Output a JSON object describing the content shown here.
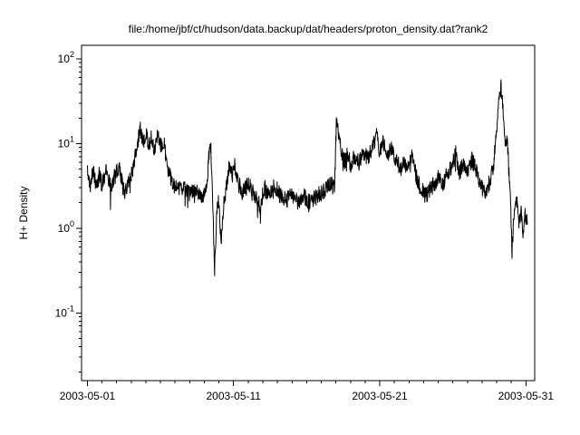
{
  "chart_data": {
    "type": "line",
    "title": "file:/home/jbf/ct/hudson/data.backup/dat/headers/proton_density.dat?rank2",
    "xlabel": "",
    "ylabel": "H+ Density",
    "grid": false,
    "line_color": "#000000",
    "background_color": "#ffffff",
    "x_axis": {
      "start_day": 0.6,
      "end_day": 31.6,
      "unit": "date (May 2003)",
      "major_ticks": [
        {
          "day": 1,
          "label": "2003-05-01"
        },
        {
          "day": 11,
          "label": "2003-05-11"
        },
        {
          "day": 21,
          "label": "2003-05-21"
        },
        {
          "day": 31,
          "label": "2003-05-31"
        }
      ],
      "minor_tick_interval_days": 1
    },
    "y_axis": {
      "scale": "log",
      "log_min": -1.8,
      "log_max": 2.16,
      "ylim": [
        0.016,
        145
      ],
      "major_ticks": [
        {
          "exp": 2,
          "label": "10^2"
        },
        {
          "exp": 1,
          "label": "10^1"
        },
        {
          "exp": 0,
          "label": "10^0"
        },
        {
          "exp": -1,
          "label": "10^-1"
        }
      ],
      "minor_ticks": "2-9 within each decade"
    },
    "series": [
      {
        "name": "H+ Density (proton density)",
        "x_unit": "day of May 2003",
        "noise_log10": 0.1,
        "anchors": [
          [
            1.0,
            4.5
          ],
          [
            1.2,
            3.2
          ],
          [
            1.4,
            5.0
          ],
          [
            1.6,
            3.0
          ],
          [
            1.8,
            4.2
          ],
          [
            2.0,
            3.3
          ],
          [
            2.3,
            4.8
          ],
          [
            2.6,
            3.0
          ],
          [
            2.9,
            4.5
          ],
          [
            3.2,
            5.2
          ],
          [
            3.5,
            2.6
          ],
          [
            3.8,
            3.5
          ],
          [
            4.1,
            5.0
          ],
          [
            4.4,
            9.0
          ],
          [
            4.6,
            15.0
          ],
          [
            4.8,
            10.0
          ],
          [
            5.0,
            13.0
          ],
          [
            5.2,
            9.0
          ],
          [
            5.4,
            12.0
          ],
          [
            5.6,
            8.0
          ],
          [
            5.8,
            12.5
          ],
          [
            6.0,
            9.0
          ],
          [
            6.2,
            11.0
          ],
          [
            6.5,
            5.0
          ],
          [
            6.8,
            3.5
          ],
          [
            7.2,
            2.8
          ],
          [
            7.6,
            3.2
          ],
          [
            8.0,
            2.5
          ],
          [
            8.4,
            2.8
          ],
          [
            8.8,
            2.2
          ],
          [
            9.1,
            2.6
          ],
          [
            9.3,
            6.5
          ],
          [
            9.45,
            9.0
          ],
          [
            9.6,
            1.2
          ],
          [
            9.7,
            0.34
          ],
          [
            9.85,
            1.5
          ],
          [
            10.0,
            2.2
          ],
          [
            10.15,
            0.6
          ],
          [
            10.3,
            1.8
          ],
          [
            10.5,
            3.0
          ],
          [
            10.7,
            5.5
          ],
          [
            10.9,
            4.0
          ],
          [
            11.1,
            5.5
          ],
          [
            11.3,
            3.5
          ],
          [
            11.6,
            2.6
          ],
          [
            12.0,
            3.3
          ],
          [
            12.4,
            2.6
          ],
          [
            12.8,
            1.8
          ],
          [
            13.1,
            3.0
          ],
          [
            13.4,
            2.4
          ],
          [
            13.8,
            3.2
          ],
          [
            14.2,
            2.4
          ],
          [
            14.6,
            2.1
          ],
          [
            15.0,
            2.6
          ],
          [
            15.4,
            2.0
          ],
          [
            15.8,
            2.4
          ],
          [
            16.2,
            2.0
          ],
          [
            16.6,
            2.3
          ],
          [
            17.0,
            2.6
          ],
          [
            17.4,
            3.0
          ],
          [
            17.7,
            3.4
          ],
          [
            17.9,
            2.8
          ],
          [
            18.05,
            22.0
          ],
          [
            18.2,
            12.0
          ],
          [
            18.4,
            8.0
          ],
          [
            18.6,
            6.0
          ],
          [
            18.8,
            7.5
          ],
          [
            19.0,
            5.5
          ],
          [
            19.3,
            7.0
          ],
          [
            19.6,
            6.0
          ],
          [
            19.9,
            8.0
          ],
          [
            20.2,
            6.5
          ],
          [
            20.5,
            9.0
          ],
          [
            20.8,
            13.0
          ],
          [
            21.0,
            8.0
          ],
          [
            21.2,
            11.0
          ],
          [
            21.5,
            7.0
          ],
          [
            21.8,
            9.5
          ],
          [
            22.1,
            6.5
          ],
          [
            22.4,
            5.0
          ],
          [
            22.7,
            6.0
          ],
          [
            23.0,
            5.0
          ],
          [
            23.2,
            7.5
          ],
          [
            23.5,
            4.0
          ],
          [
            23.8,
            3.0
          ],
          [
            24.1,
            2.4
          ],
          [
            24.4,
            2.8
          ],
          [
            24.7,
            3.3
          ],
          [
            25.0,
            4.0
          ],
          [
            25.3,
            3.2
          ],
          [
            25.6,
            4.5
          ],
          [
            25.9,
            5.0
          ],
          [
            26.2,
            7.5
          ],
          [
            26.4,
            4.5
          ],
          [
            26.7,
            5.5
          ],
          [
            27.0,
            4.5
          ],
          [
            27.3,
            6.5
          ],
          [
            27.6,
            5.0
          ],
          [
            27.9,
            3.2
          ],
          [
            28.2,
            2.5
          ],
          [
            28.5,
            3.5
          ],
          [
            28.8,
            6.0
          ],
          [
            29.0,
            14.0
          ],
          [
            29.15,
            30.0
          ],
          [
            29.3,
            48.0
          ],
          [
            29.45,
            25.0
          ],
          [
            29.6,
            10.0
          ],
          [
            29.7,
            14.0
          ],
          [
            29.8,
            6.0
          ],
          [
            29.95,
            2.0
          ],
          [
            30.05,
            0.55
          ],
          [
            30.2,
            1.6
          ],
          [
            30.35,
            2.5
          ],
          [
            30.5,
            1.1
          ],
          [
            30.65,
            1.6
          ],
          [
            30.8,
            0.9
          ],
          [
            30.95,
            1.4
          ],
          [
            31.1,
            1.1
          ]
        ]
      }
    ]
  }
}
